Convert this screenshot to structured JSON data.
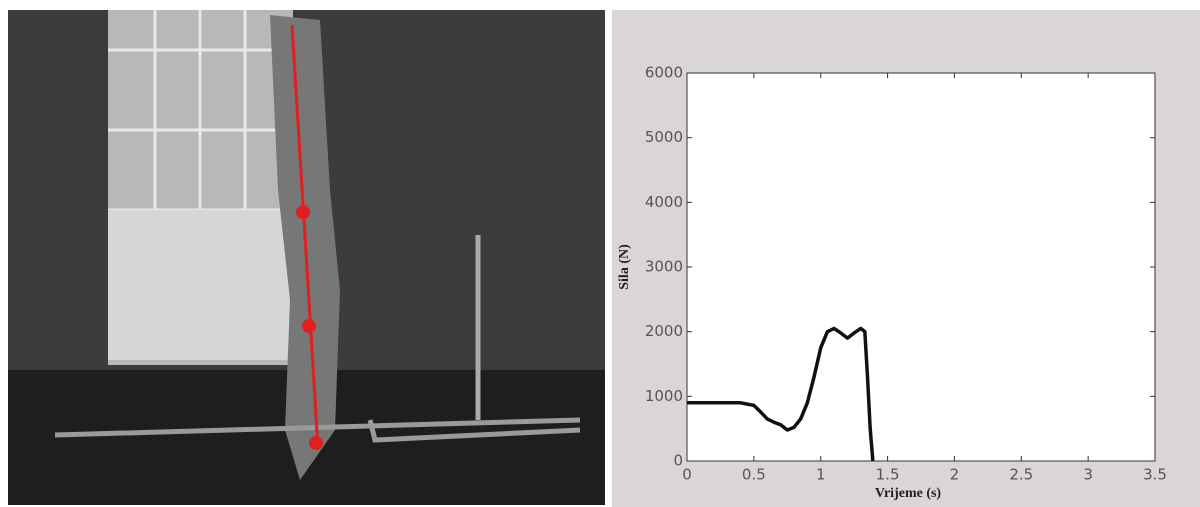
{
  "chart_data": {
    "type": "line",
    "x_label": "Vrijeme (s)",
    "y_label": "Sila (N)",
    "x": [
      0,
      0.2,
      0.4,
      0.5,
      0.55,
      0.6,
      0.65,
      0.7,
      0.75,
      0.8,
      0.85,
      0.9,
      0.95,
      1.0,
      1.05,
      1.1,
      1.15,
      1.2,
      1.25,
      1.3,
      1.33,
      1.35,
      1.37,
      1.39
    ],
    "series": [
      {
        "color": "#111111",
        "values": [
          900,
          900,
          900,
          860,
          760,
          650,
          600,
          560,
          480,
          520,
          650,
          900,
          1300,
          1750,
          2000,
          2050,
          1980,
          1900,
          1980,
          2050,
          2000,
          1300,
          500,
          0
        ]
      }
    ],
    "xlim": [
      0,
      3.5
    ],
    "xticks": [
      0,
      0.5,
      1,
      1.5,
      2,
      2.5,
      3,
      3.5
    ],
    "ylim": [
      0,
      6000
    ],
    "yticks": [
      0,
      1000,
      2000,
      3000,
      4000,
      5000,
      6000
    ],
    "grid": false
  }
}
